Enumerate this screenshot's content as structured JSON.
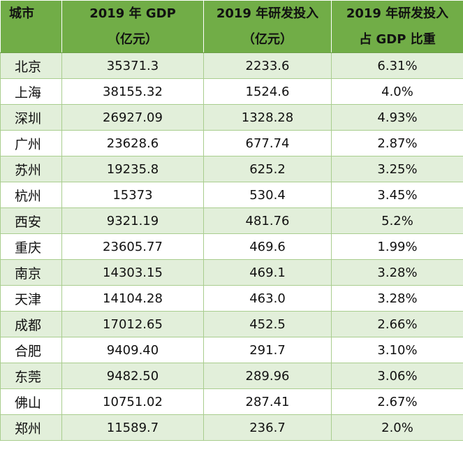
{
  "header": {
    "city": "城市",
    "gdp_line1": "2019 年 GDP",
    "gdp_line2": "（亿元）",
    "rd_line1": "2019 年研发投入",
    "rd_line2": "（亿元）",
    "ratio_line1": "2019 年研发投入",
    "ratio_line2": "占 GDP 比重"
  },
  "rows": [
    {
      "city": "北京",
      "gdp": "35371.3",
      "rd": "2233.6",
      "ratio": "6.31%"
    },
    {
      "city": "上海",
      "gdp": "38155.32",
      "rd": "1524.6",
      "ratio": "4.0%"
    },
    {
      "city": "深圳",
      "gdp": "26927.09",
      "rd": "1328.28",
      "ratio": "4.93%"
    },
    {
      "city": "广州",
      "gdp": "23628.6",
      "rd": "677.74",
      "ratio": "2.87%"
    },
    {
      "city": "苏州",
      "gdp": "19235.8",
      "rd": "625.2",
      "ratio": "3.25%"
    },
    {
      "city": "杭州",
      "gdp": "15373",
      "rd": "530.4",
      "ratio": "3.45%"
    },
    {
      "city": "西安",
      "gdp": "9321.19",
      "rd": "481.76",
      "ratio": "5.2%"
    },
    {
      "city": "重庆",
      "gdp": "23605.77",
      "rd": "469.6",
      "ratio": "1.99%"
    },
    {
      "city": "南京",
      "gdp": "14303.15",
      "rd": "469.1",
      "ratio": "3.28%"
    },
    {
      "city": "天津",
      "gdp": "14104.28",
      "rd": "463.0",
      "ratio": "3.28%"
    },
    {
      "city": "成都",
      "gdp": "17012.65",
      "rd": "452.5",
      "ratio": "2.66%"
    },
    {
      "city": "合肥",
      "gdp": "9409.40",
      "rd": "291.7",
      "ratio": "3.10%"
    },
    {
      "city": "东莞",
      "gdp": "9482.50",
      "rd": "289.96",
      "ratio": "3.06%"
    },
    {
      "city": "佛山",
      "gdp": "10751.02",
      "rd": "287.41",
      "ratio": "2.67%"
    },
    {
      "city": "郑州",
      "gdp": "11589.7",
      "rd": "236.7",
      "ratio": "2.0%"
    }
  ],
  "colors": {
    "header_bg": "#71ad47",
    "odd_row_bg": "#e2efda",
    "even_row_bg": "#ffffff",
    "grid_line": "#a9cd8e"
  }
}
